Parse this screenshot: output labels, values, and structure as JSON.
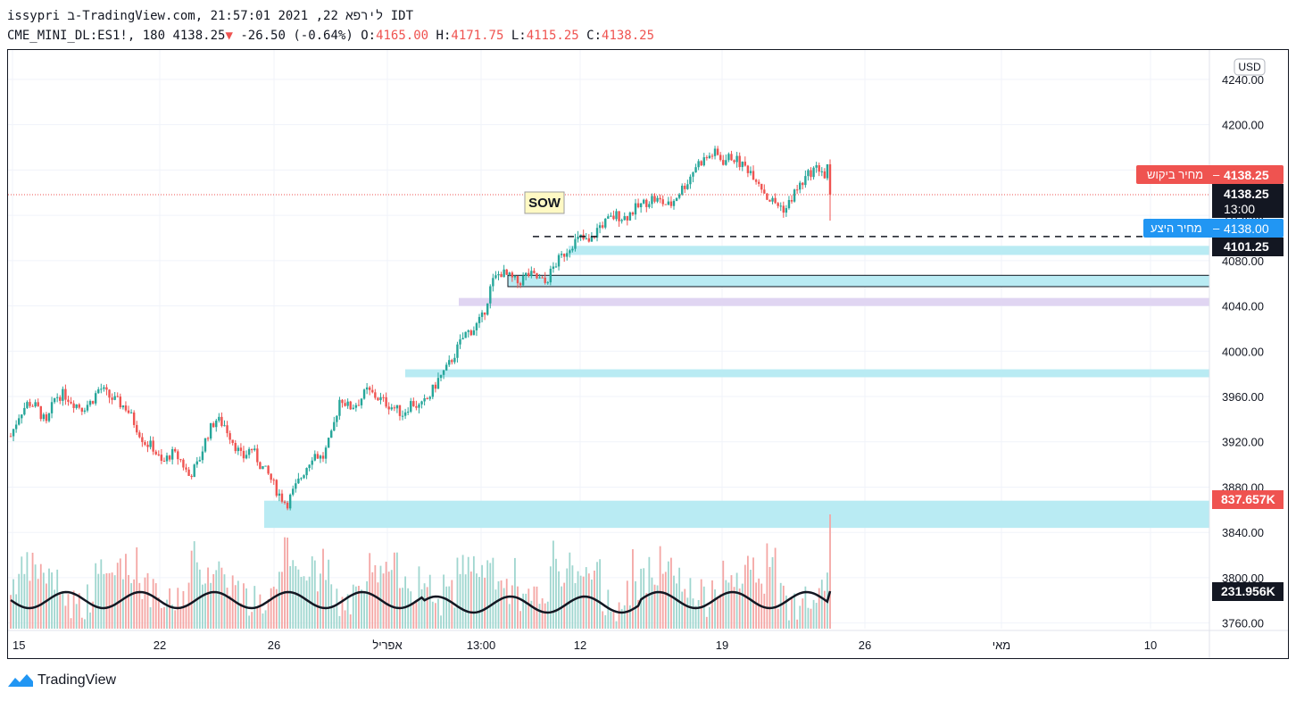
{
  "header": {
    "line1": "issypri ב-TradingView.com, לירפא 22, 2021 21:57:01 IDT",
    "symbol": "CME_MINI_DL:ES1!, 180",
    "last": "4138.25",
    "change_arrow": "▼",
    "change": "-26.50 (-0.64%)",
    "o_label": "O:",
    "o_value": "4165.00",
    "h_label": "H:",
    "h_value": "4171.75",
    "l_label": "L:",
    "l_value": "4115.25",
    "c_label": "C:",
    "c_value": "4138.25"
  },
  "colors": {
    "up": "#26a69a",
    "down": "#ef5350",
    "vol_up": "#9fd6cf",
    "vol_down": "#f4a6a4",
    "zone_blue": "#b9ebf3",
    "zone_purple": "#e0d5f2",
    "ask": "#ef5350",
    "bid": "#2196f3"
  },
  "chart_data": {
    "type": "candlestick",
    "currency": "USD",
    "y_ticks": [
      "4240.00",
      "4200.00",
      "4160.00",
      "4120.00",
      "4080.00",
      "4040.00",
      "4000.00",
      "3960.00",
      "3920.00",
      "3880.00",
      "3840.00",
      "3800.00",
      "3760.00"
    ],
    "y_tick_values": [
      4240,
      4200,
      4160,
      4120,
      4080,
      4040,
      4000,
      3960,
      3920,
      3880,
      3840,
      3800,
      3760
    ],
    "ylim": [
      3755,
      4262
    ],
    "x_ticks": [
      "15",
      "22",
      "26",
      "אפריל",
      "13:00",
      "12",
      "19",
      "26",
      "מאי",
      "10"
    ],
    "price_labels": {
      "ask_label": "מחיר ביקוש",
      "ask_value": "4138.25",
      "last_value": "4138.25",
      "last_time": "13:00",
      "bid_label": "מחיר היצע",
      "bid_value": "4138.00",
      "level_value": "4101.25",
      "vol_value": "837.657K",
      "ma_value": "231.956K"
    },
    "annotation": "SOW",
    "levels": {
      "current_price": 4138.25,
      "dashed_level": 4101.25
    },
    "zones": [
      {
        "name": "zone-1",
        "from": 4085,
        "to": 4093,
        "color": "blue"
      },
      {
        "name": "zone-2",
        "from": 4057,
        "to": 4067,
        "color": "blue",
        "bordered": true
      },
      {
        "name": "zone-3",
        "from": 4040,
        "to": 4047,
        "color": "purple"
      },
      {
        "name": "zone-4",
        "from": 3977,
        "to": 3984,
        "color": "blue"
      },
      {
        "name": "zone-5",
        "from": 3844,
        "to": 3868,
        "color": "blue"
      }
    ],
    "close_path": [
      3925,
      3945,
      3955,
      3950,
      3935,
      3960,
      3962,
      3955,
      3950,
      3955,
      3968,
      3960,
      3955,
      3950,
      3935,
      3920,
      3915,
      3900,
      3910,
      3905,
      3890,
      3900,
      3925,
      3940,
      3935,
      3920,
      3905,
      3915,
      3900,
      3890,
      3875,
      3865,
      3880,
      3895,
      3910,
      3905,
      3925,
      3960,
      3950,
      3955,
      3965,
      3960,
      3955,
      3950,
      3945,
      3955,
      3950,
      3960,
      3975,
      3985,
      4000,
      4015,
      4020,
      4030,
      4060,
      4070,
      4065,
      4060,
      4068,
      4065,
      4060,
      4075,
      4085,
      4095,
      4100,
      4095,
      4110,
      4115,
      4120,
      4118,
      4125,
      4130,
      4135,
      4132,
      4128,
      4140,
      4150,
      4165,
      4170,
      4175,
      4168,
      4172,
      4165,
      4160,
      4150,
      4135,
      4130,
      4125,
      4140,
      4150,
      4160,
      4162,
      4138.25
    ],
    "crash_indices": [
      33,
      38
    ],
    "volume_max": 837657,
    "volume_ma_last": 231956,
    "dashed_from_index": 47
  }
}
